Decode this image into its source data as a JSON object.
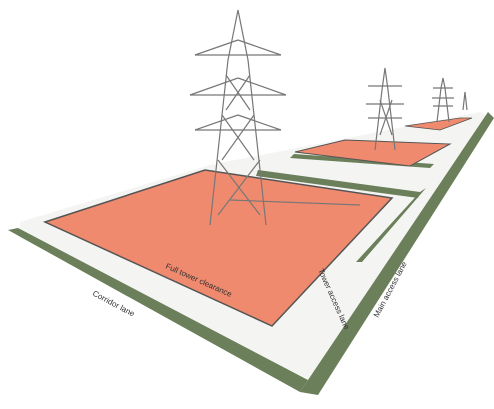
{
  "labels": {
    "tower_clearance": "Full tower clearance",
    "tower_access": "Tower access lane",
    "corridor": "Corridor lane",
    "main_access": "Main access lane"
  }
}
